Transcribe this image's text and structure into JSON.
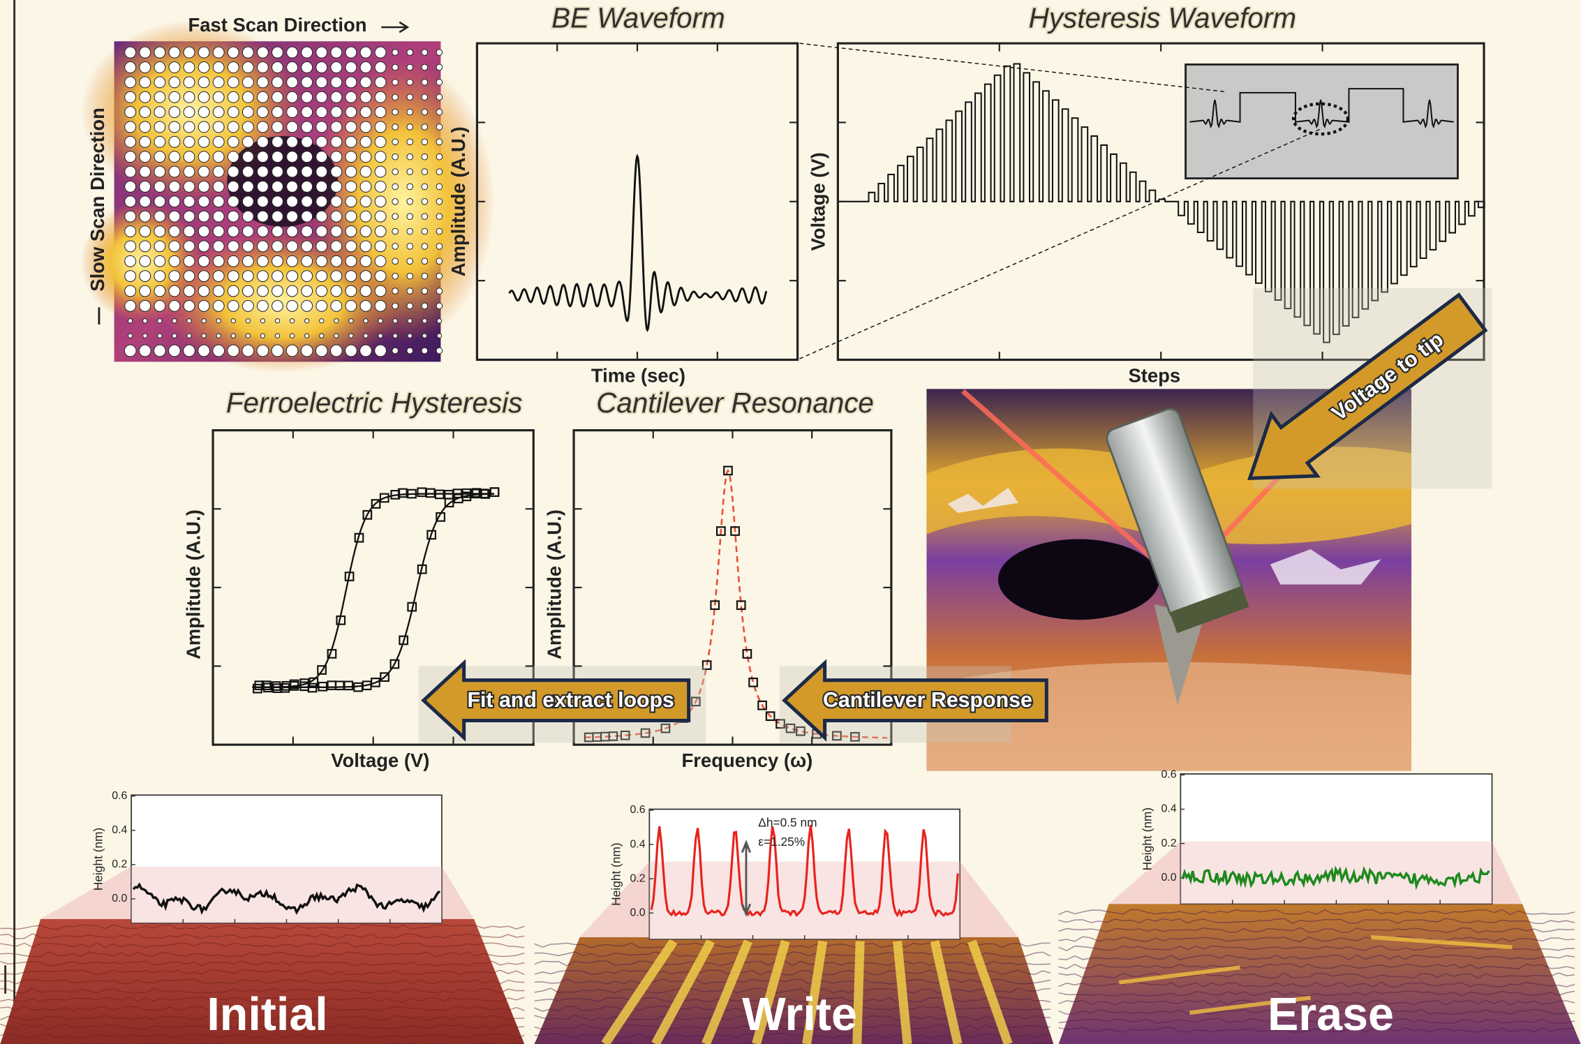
{
  "scan_grid": {
    "fast_scan": "Fast Scan Direction",
    "slow_scan": "Slow Scan Direction"
  },
  "be_waveform": {
    "title": "BE Waveform",
    "ylabel": "Amplitude (A.U.)",
    "xlabel": "Time (sec)"
  },
  "hysteresis_waveform": {
    "title": "Hysteresis Waveform",
    "ylabel": "Voltage (V)",
    "xlabel": "Steps"
  },
  "ferroelectric_hysteresis": {
    "title": "Ferroelectric Hysteresis",
    "ylabel": "Amplitude (A.U.)",
    "xlabel": "Voltage (V)"
  },
  "cantilever_resonance": {
    "title": "Cantilever Resonance",
    "ylabel": "Amplitude (A.U.)",
    "xlabel": "Frequency (ω)"
  },
  "arrows": {
    "voltage_to_tip": "Voltage to tip",
    "fit_extract": "Fit and extract loops",
    "cantilever_response": "Cantilever Response"
  },
  "surfaces": [
    {
      "label": "Initial",
      "ylabel": "Height (nm)",
      "yticks": [
        "0.6",
        "0.4",
        "0.2",
        "0.0"
      ]
    },
    {
      "label": "Write",
      "ylabel": "Height (nm)",
      "yticks": [
        "0.6",
        "0.4",
        "0.2",
        "0.0"
      ],
      "annotations": [
        "Δh=0.5 nm",
        "ε=1.25%"
      ]
    },
    {
      "label": "Erase",
      "ylabel": "Height (nm)",
      "yticks": [
        "0.6",
        "0.4",
        "0.2",
        "0.0"
      ]
    }
  ]
}
